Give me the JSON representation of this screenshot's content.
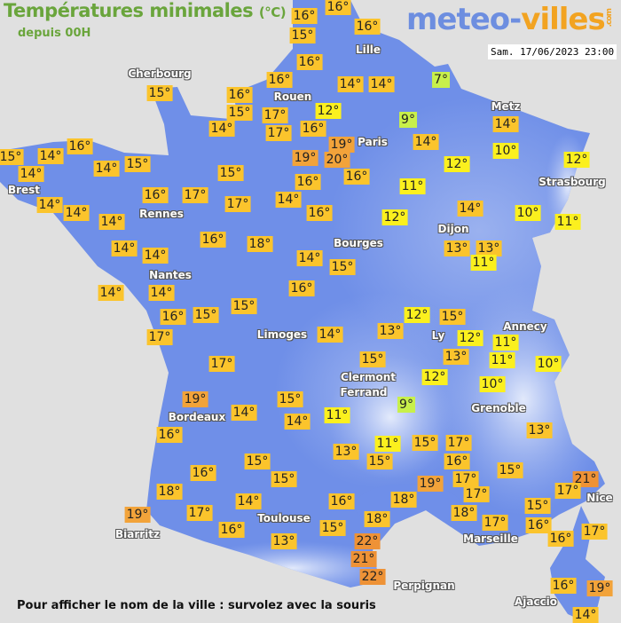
{
  "header": {
    "title": "Températures minimales",
    "unit": "(°C)",
    "subtitle": "depuis 00H"
  },
  "logo": {
    "part1": "meteo-",
    "part2": "villes",
    "suffix": ".com"
  },
  "timestamp": "Sam. 17/06/2023 23:00",
  "footer": "Pour afficher le nom de la ville : survolez avec la souris",
  "colors": {
    "land": "#6f8fe8",
    "sea": "#e0e0e0",
    "lime": "#c8f04a",
    "yellow": "#fbf01e",
    "amber": "#fbc42c",
    "orange": "#f2a33a",
    "dark_orange": "#ee9236"
  },
  "cities": [
    "Lille",
    "Cherbourg",
    "Rouen",
    "Paris",
    "Brest",
    "Rennes",
    "Metz",
    "Strasbourg",
    "Dijon",
    "Bourges",
    "Nantes",
    "Limoges",
    "Ly",
    "Annecy",
    "Clermont",
    "Ferrand",
    "Grenoble",
    "Bordeaux",
    "Nice",
    "Biarritz",
    "Toulouse",
    "Marseille",
    "Perpignan",
    "Ajaccio"
  ],
  "temperatures": [
    "16°",
    "16°",
    "15°",
    "16°",
    "16°",
    "14°",
    "14°",
    "7°",
    "15°",
    "16°",
    "16°",
    "15°",
    "17°",
    "17°",
    "14°",
    "12°",
    "16°",
    "19°",
    "9°",
    "14°",
    "19°",
    "20°",
    "16°",
    "16°",
    "15°",
    "14°",
    "14°",
    "14°",
    "15°",
    "14°",
    "16°",
    "17°",
    "15°",
    "17°",
    "14°",
    "16°",
    "14°",
    "14°",
    "16°",
    "18°",
    "16°",
    "14°",
    "14°",
    "14°",
    "14°",
    "14°",
    "10°",
    "12°",
    "12°",
    "11°",
    "14°",
    "10°",
    "11°",
    "12°",
    "13°",
    "13°",
    "11°",
    "14°",
    "15°",
    "16°",
    "16°",
    "15°",
    "15°",
    "17°",
    "14°",
    "12°",
    "15°",
    "12°",
    "13°",
    "11°",
    "11°",
    "10°",
    "13°",
    "15°",
    "12°",
    "10°",
    "9°",
    "17°",
    "19°",
    "14°",
    "15°",
    "14°",
    "11°",
    "16°",
    "11°",
    "15°",
    "17°",
    "13°",
    "15°",
    "13°",
    "15°",
    "15°",
    "16°",
    "18°",
    "16°",
    "15°",
    "19°",
    "17°",
    "21°",
    "17°",
    "14°",
    "17°",
    "16°",
    "19°",
    "16°",
    "18°",
    "17°",
    "18°",
    "17°",
    "15°",
    "18°",
    "15°",
    "13°",
    "16°",
    "16°",
    "17°",
    "22°",
    "21°",
    "22°",
    "16°",
    "19°",
    "14°"
  ]
}
